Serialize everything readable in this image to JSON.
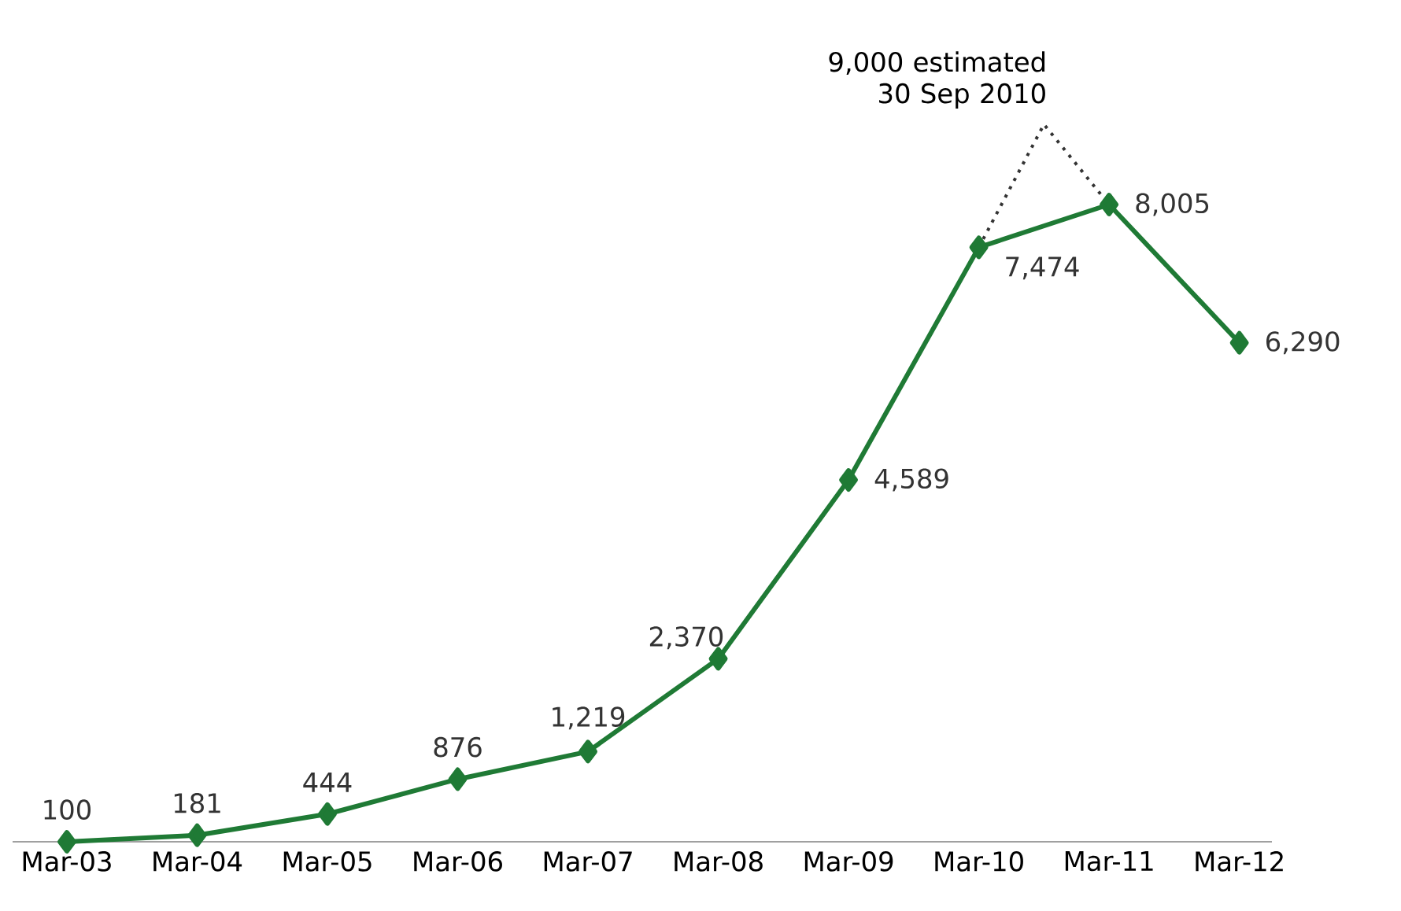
{
  "chart_data": {
    "type": "line",
    "x": [
      "2003-03",
      "2004-03",
      "2005-03",
      "2006-03",
      "2007-03",
      "2008-03",
      "2009-03",
      "2010-03",
      "2011-03",
      "2012-03"
    ],
    "xlim": [
      "2002-10",
      "2012-06"
    ],
    "xticks": [
      {
        "value": "2003-03",
        "label": "Mar-03"
      },
      {
        "value": "2004-03",
        "label": "Mar-04"
      },
      {
        "value": "2005-03",
        "label": "Mar-05"
      },
      {
        "value": "2006-03",
        "label": "Mar-06"
      },
      {
        "value": "2007-03",
        "label": "Mar-07"
      },
      {
        "value": "2008-03",
        "label": "Mar-08"
      },
      {
        "value": "2009-03",
        "label": "Mar-09"
      },
      {
        "value": "2010-03",
        "label": "Mar-10"
      },
      {
        "value": "2011-03",
        "label": "Mar-11"
      },
      {
        "value": "2012-03",
        "label": "Mar-12"
      }
    ],
    "tick_labels": "x",
    "grid": false,
    "series": [
      {
        "color": "#1f7a35",
        "marker": "diamond",
        "line_style": "solid",
        "values": [
          100,
          181,
          444,
          876,
          1219,
          2370,
          4589,
          7474,
          8005,
          6290
        ],
        "value_labels": [
          "100",
          "181",
          "444",
          "876",
          "1,219",
          "2,370",
          "4,589",
          "7,474",
          "8,005",
          "6,290"
        ]
      },
      {
        "color": "#333333",
        "marker": "none",
        "line_style": "dotted",
        "x": [
          "2010-03",
          "2010-09",
          "2011-03"
        ],
        "values": [
          7474,
          9000,
          8005
        ]
      }
    ],
    "annotations": [
      {
        "text": "9,000 estimated 30 Sep 2010",
        "x": "2010-09",
        "y": 9000
      }
    ]
  }
}
